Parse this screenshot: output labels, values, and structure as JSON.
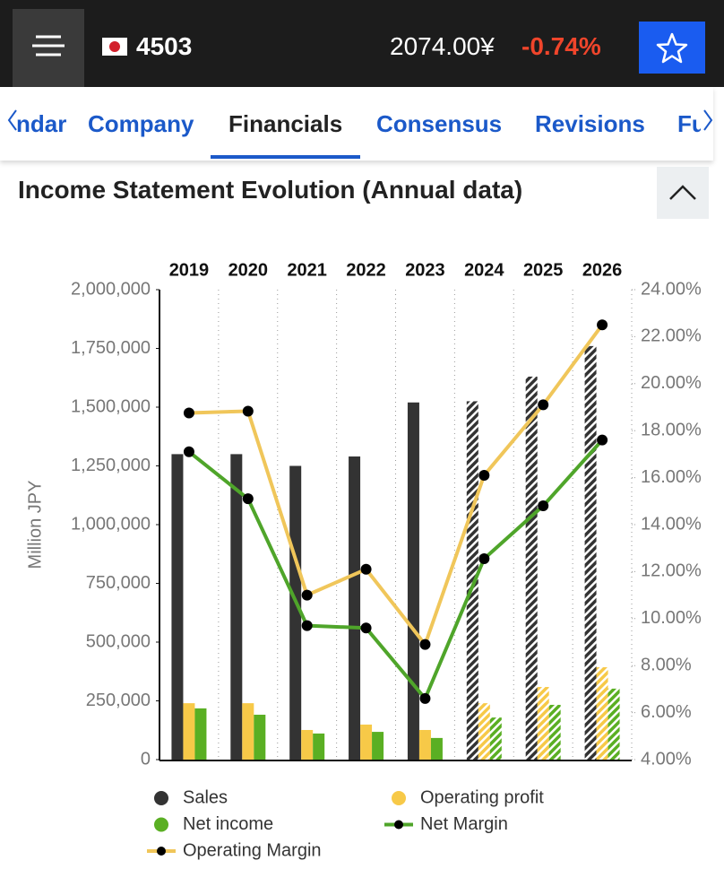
{
  "header": {
    "ticker": "4503",
    "price": "2074.00¥",
    "change": "-0.74%"
  },
  "tabs": [
    "ndar",
    "Company",
    "Financials",
    "Consensus",
    "Revisions",
    "Fu"
  ],
  "active_tab": 2,
  "section_title": "Income Statement Evolution (Annual data)",
  "chart_data": {
    "type": "bar",
    "y_label": "Million JPY",
    "categories": [
      "2019",
      "2020",
      "2021",
      "2022",
      "2023",
      "2024",
      "2025",
      "2026"
    ],
    "hatched": [
      false,
      false,
      false,
      false,
      false,
      true,
      true,
      true
    ],
    "ylim": [
      0,
      2000000
    ],
    "yticks": [
      0,
      {
        "value": 250000,
        "label": "250,000"
      },
      {
        "value": 500000,
        "label": "500,000"
      },
      {
        "value": 750000,
        "label": "750,000"
      },
      {
        "value": 1000000,
        "label": "1,000,000"
      },
      {
        "value": 1250000,
        "label": "1,250,000"
      },
      {
        "value": 1500000,
        "label": "1,500,000"
      },
      {
        "value": 1750000,
        "label": "1,750,000"
      },
      {
        "value": 2000000,
        "label": "2,000,000"
      }
    ],
    "y2lim": [
      4,
      24
    ],
    "y2ticks": [
      {
        "value": 4,
        "label": "4.00%"
      },
      {
        "value": 6,
        "label": "6.00%"
      },
      {
        "value": 8,
        "label": "8.00%"
      },
      {
        "value": 10,
        "label": "10.00%"
      },
      {
        "value": 12,
        "label": "12.00%"
      },
      {
        "value": 14,
        "label": "14.00%"
      },
      {
        "value": 16,
        "label": "16.00%"
      },
      {
        "value": 18,
        "label": "18.00%"
      },
      {
        "value": 20,
        "label": "20.00%"
      },
      {
        "value": 22,
        "label": "22.00%"
      },
      {
        "value": 24,
        "label": "24.00%"
      }
    ],
    "series": [
      {
        "name": "Sales",
        "type": "bar",
        "color": "#333333",
        "values": [
          1300000,
          1300000,
          1250000,
          1290000,
          1520000,
          1525000,
          1630000,
          1760000
        ]
      },
      {
        "name": "Operating profit",
        "type": "bar",
        "color": "#f7c948",
        "values": [
          240000,
          240000,
          126000,
          149000,
          126000,
          240000,
          309000,
          393000
        ]
      },
      {
        "name": "Net income",
        "type": "bar",
        "color": "#5aaf23",
        "values": [
          218000,
          191000,
          111000,
          118000,
          92000,
          179000,
          233000,
          302000
        ]
      },
      {
        "name": "Net Margin",
        "type": "line",
        "axis": "y2",
        "color": "#4fa52a",
        "values": [
          17.1,
          15.1,
          9.7,
          9.6,
          6.6,
          12.55,
          14.8,
          17.6
        ]
      },
      {
        "name": "Operating Margin",
        "type": "line",
        "axis": "y2",
        "color": "#f0c65a",
        "values": [
          18.75,
          18.83,
          11.0,
          12.1,
          8.9,
          16.1,
          19.1,
          22.5
        ]
      }
    ]
  }
}
